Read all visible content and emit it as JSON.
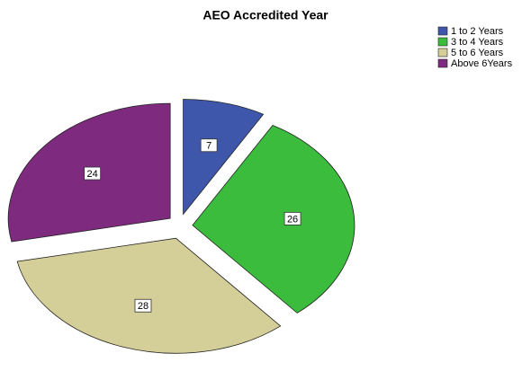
{
  "chart_data": {
    "type": "pie",
    "title": "AEO Accredited Year",
    "categories": [
      "1 to 2 Years",
      "3 to 4 Years",
      "5 to 6 Years",
      "Above 6Years"
    ],
    "values": [
      7,
      26,
      28,
      24
    ],
    "colors": [
      "#3f57ab",
      "#3cbc3c",
      "#d4cf98",
      "#7e2a7e"
    ],
    "legend": "top-right"
  }
}
